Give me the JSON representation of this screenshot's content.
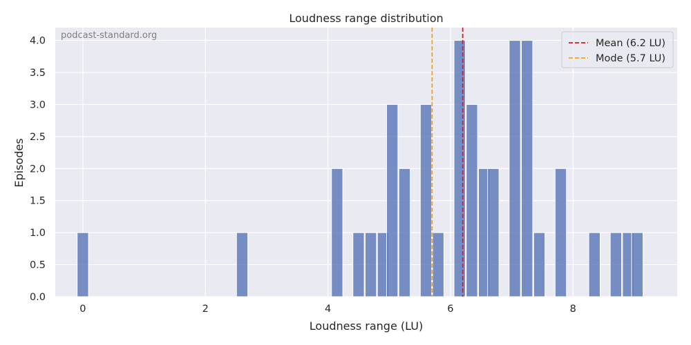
{
  "chart_data": {
    "type": "bar",
    "title": "Loudness range distribution",
    "xlabel": "Loudness range (LU)",
    "ylabel": "Episodes",
    "xlim": [
      -0.45,
      9.7
    ],
    "ylim": [
      0,
      4.2
    ],
    "xticks": [
      0,
      2,
      4,
      6,
      8
    ],
    "yticks": [
      0.0,
      0.5,
      1.0,
      1.5,
      2.0,
      2.5,
      3.0,
      3.5,
      4.0
    ],
    "grid": true,
    "legend_position": "top-right",
    "bin_width": 0.185,
    "bins": [
      {
        "x": 0.0,
        "count": 1
      },
      {
        "x": 2.6,
        "count": 1
      },
      {
        "x": 4.15,
        "count": 2
      },
      {
        "x": 4.5,
        "count": 1
      },
      {
        "x": 4.7,
        "count": 1
      },
      {
        "x": 4.9,
        "count": 1
      },
      {
        "x": 5.05,
        "count": 3
      },
      {
        "x": 5.25,
        "count": 2
      },
      {
        "x": 5.6,
        "count": 3
      },
      {
        "x": 5.8,
        "count": 1
      },
      {
        "x": 6.15,
        "count": 4
      },
      {
        "x": 6.35,
        "count": 3
      },
      {
        "x": 6.55,
        "count": 2
      },
      {
        "x": 6.7,
        "count": 2
      },
      {
        "x": 7.05,
        "count": 4
      },
      {
        "x": 7.25,
        "count": 4
      },
      {
        "x": 7.45,
        "count": 1
      },
      {
        "x": 7.8,
        "count": 2
      },
      {
        "x": 8.35,
        "count": 1
      },
      {
        "x": 8.7,
        "count": 1
      },
      {
        "x": 8.9,
        "count": 1
      },
      {
        "x": 9.05,
        "count": 1
      }
    ],
    "bar_color": "#5975b6",
    "reference_lines": [
      {
        "name": "Mean (6.2 LU)",
        "x": 6.2,
        "color": "#e0191b",
        "style": "dashed"
      },
      {
        "name": "Mode (5.7 LU)",
        "x": 5.7,
        "color": "#f5a31a",
        "style": "dashed"
      }
    ],
    "watermark": "podcast-standard.org"
  }
}
